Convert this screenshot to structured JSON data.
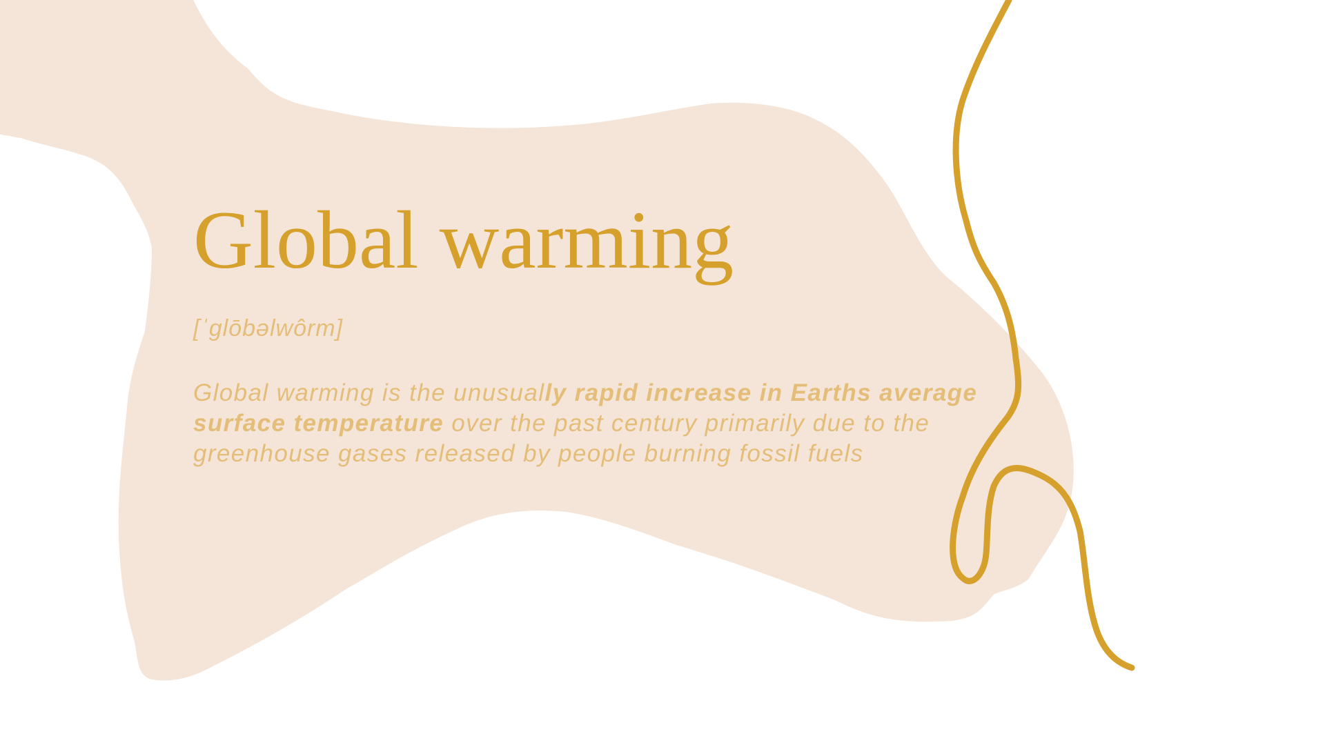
{
  "slide": {
    "title": "Global warming",
    "phonetic": "[ˈglōbəlwôrm]",
    "definition": {
      "part1": "Global warming is the unusual",
      "emphasis": "ly rapid increase in Earths average surface temperature",
      "part2": " over the past century primarily due to the greenhouse gases released by people burning fossil fuels"
    }
  },
  "colors": {
    "background": "#ffffff",
    "blob": "#f4e5d8",
    "accent_gold": "#d5a02b",
    "text_light_gold": "#e4bd79"
  }
}
